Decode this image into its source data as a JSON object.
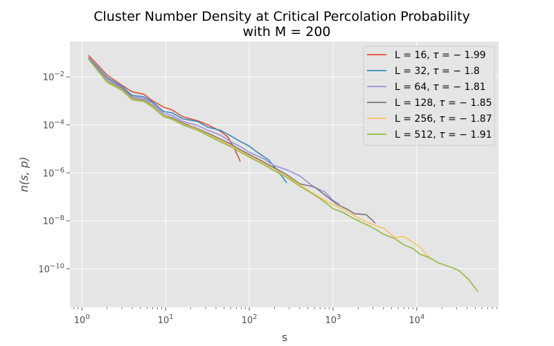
{
  "chart_data": {
    "type": "line",
    "title": "Cluster Number Density at Critical Percolation Probability",
    "subtitle": "with M = 200",
    "xlabel": "s",
    "ylabel": "n(s, p)",
    "xscale": "log",
    "yscale": "log",
    "xlim": [
      0.72,
      95000
    ],
    "ylim": [
      2.5e-12,
      0.3
    ],
    "grid": true,
    "legend_position": "top-right",
    "x_ticks": [
      {
        "base": "10",
        "exp": "0"
      },
      {
        "base": "10",
        "exp": "1"
      },
      {
        "base": "10",
        "exp": "2"
      },
      {
        "base": "10",
        "exp": "3"
      },
      {
        "base": "10",
        "exp": "4"
      }
    ],
    "y_ticks": [
      {
        "base": "10",
        "exp": "−2",
        "value": 0.01
      },
      {
        "base": "10",
        "exp": "−4",
        "value": 0.0001
      },
      {
        "base": "10",
        "exp": "−6",
        "value": 1e-06
      },
      {
        "base": "10",
        "exp": "−8",
        "value": 1e-08
      },
      {
        "base": "10",
        "exp": "−10",
        "value": 1e-10
      }
    ],
    "series": [
      {
        "name": "L = 16, τ = − 1.99",
        "label_parts": [
          "L = 16, ",
          "τ",
          " = − 1.99"
        ],
        "color": "#e24a33",
        "points": [
          [
            1.2,
            0.08
          ],
          [
            2,
            0.012
          ],
          [
            3,
            0.0045
          ],
          [
            4,
            0.0024
          ],
          [
            5.5,
            0.0019
          ],
          [
            7,
            0.001
          ],
          [
            9.5,
            0.00055
          ],
          [
            12,
            0.00042
          ],
          [
            16,
            0.00022
          ],
          [
            24,
            0.00015
          ],
          [
            32,
            0.0001
          ],
          [
            45,
            5.5e-05
          ],
          [
            55,
            3.2e-05
          ],
          [
            65,
            1.2e-05
          ],
          [
            78,
            3e-06
          ]
        ]
      },
      {
        "name": "L = 32, τ = − 1.8",
        "label_parts": [
          "L = 32, ",
          "τ",
          " = − 1.8"
        ],
        "color": "#348abd",
        "points": [
          [
            1.2,
            0.065
          ],
          [
            2,
            0.0095
          ],
          [
            3,
            0.004
          ],
          [
            4,
            0.0017
          ],
          [
            5.5,
            0.0015
          ],
          [
            7,
            0.0009
          ],
          [
            9.5,
            0.00036
          ],
          [
            12,
            0.00032
          ],
          [
            16,
            0.00018
          ],
          [
            24,
            0.00014
          ],
          [
            32,
            8e-05
          ],
          [
            45,
            6e-05
          ],
          [
            60,
            3.5e-05
          ],
          [
            75,
            2.2e-05
          ],
          [
            100,
            1.3e-05
          ],
          [
            130,
            6.5e-06
          ],
          [
            170,
            3.5e-06
          ],
          [
            220,
            1.2e-06
          ],
          [
            280,
            3.8e-07
          ]
        ]
      },
      {
        "name": "L = 64, τ = − 1.81",
        "label_parts": [
          "L = 64, ",
          "τ",
          " = − 1.81"
        ],
        "color": "#988ed5",
        "points": [
          [
            1.2,
            0.06
          ],
          [
            2,
            0.0085
          ],
          [
            3,
            0.0035
          ],
          [
            4,
            0.0015
          ],
          [
            5.5,
            0.0013
          ],
          [
            7,
            0.0008
          ],
          [
            9.5,
            0.0003
          ],
          [
            12,
            0.00025
          ],
          [
            16,
            0.00014
          ],
          [
            24,
            9.5e-05
          ],
          [
            32,
            6e-05
          ],
          [
            45,
            3.8e-05
          ],
          [
            60,
            2e-05
          ],
          [
            75,
            1.35e-05
          ],
          [
            100,
            7.2e-06
          ],
          [
            150,
            3.8e-06
          ],
          [
            200,
            2e-06
          ],
          [
            280,
            1.35e-06
          ],
          [
            400,
            7.5e-07
          ],
          [
            600,
            2.5e-07
          ],
          [
            800,
            1.6e-07
          ],
          [
            1000,
            7e-08
          ],
          [
            1200,
            5e-08
          ]
        ]
      },
      {
        "name": "L = 128, τ = − 1.85",
        "label_parts": [
          "L = 128, ",
          "τ",
          " = − 1.85"
        ],
        "color": "#777777",
        "points": [
          [
            1.2,
            0.058
          ],
          [
            2,
            0.007
          ],
          [
            3,
            0.0032
          ],
          [
            4,
            0.0013
          ],
          [
            5.5,
            0.0011
          ],
          [
            7,
            0.00065
          ],
          [
            9.5,
            0.00025
          ],
          [
            12,
            0.0002
          ],
          [
            16,
            0.00012
          ],
          [
            24,
            7e-05
          ],
          [
            32,
            4.5e-05
          ],
          [
            45,
            2.6e-05
          ],
          [
            60,
            1.6e-05
          ],
          [
            75,
            1e-05
          ],
          [
            100,
            5.8e-06
          ],
          [
            150,
            2.8e-06
          ],
          [
            200,
            1.6e-06
          ],
          [
            280,
            8.5e-07
          ],
          [
            400,
            3.5e-07
          ],
          [
            600,
            2.6e-07
          ],
          [
            800,
            1.2e-07
          ],
          [
            1100,
            5e-08
          ],
          [
            1500,
            3e-08
          ],
          [
            1800,
            2e-08
          ],
          [
            2500,
            1.8e-08
          ],
          [
            3200,
            8e-09
          ]
        ]
      },
      {
        "name": "L = 256, τ = − 1.87",
        "label_parts": [
          "L = 256, ",
          "τ",
          " = − 1.87"
        ],
        "color": "#fbc15e",
        "points": [
          [
            1.2,
            0.056
          ],
          [
            2,
            0.0065
          ],
          [
            3,
            0.003
          ],
          [
            4,
            0.0012
          ],
          [
            5.5,
            0.001
          ],
          [
            7,
            0.0006
          ],
          [
            9.5,
            0.00024
          ],
          [
            12,
            0.00018
          ],
          [
            16,
            0.00011
          ],
          [
            24,
            6.5e-05
          ],
          [
            32,
            4e-05
          ],
          [
            45,
            2.3e-05
          ],
          [
            60,
            1.4e-05
          ],
          [
            75,
            9e-06
          ],
          [
            100,
            5e-06
          ],
          [
            150,
            2.5e-06
          ],
          [
            200,
            1.4e-06
          ],
          [
            280,
            7.5e-07
          ],
          [
            400,
            3.2e-07
          ],
          [
            600,
            1.3e-07
          ],
          [
            800,
            7e-08
          ],
          [
            1100,
            4e-08
          ],
          [
            1500,
            2.5e-08
          ],
          [
            2000,
            1.3e-08
          ],
          [
            3000,
            7e-09
          ],
          [
            4000,
            5e-09
          ],
          [
            5500,
            2e-09
          ],
          [
            7000,
            2.2e-09
          ],
          [
            9000,
            1.3e-09
          ],
          [
            11000,
            8e-10
          ],
          [
            13000,
            4e-10
          ],
          [
            14500,
            2.5e-10
          ]
        ]
      },
      {
        "name": "L = 512, τ = − 1.91",
        "label_parts": [
          "L = 512, ",
          "τ",
          " = − 1.91"
        ],
        "color": "#8eba42",
        "points": [
          [
            1.2,
            0.055
          ],
          [
            2,
            0.006
          ],
          [
            3,
            0.0028
          ],
          [
            4,
            0.0011
          ],
          [
            5.5,
            0.00095
          ],
          [
            7,
            0.00055
          ],
          [
            9.5,
            0.00022
          ],
          [
            12,
            0.00017
          ],
          [
            16,
            0.0001
          ],
          [
            24,
            6e-05
          ],
          [
            32,
            3.6e-05
          ],
          [
            45,
            2e-05
          ],
          [
            60,
            1.25e-05
          ],
          [
            75,
            8e-06
          ],
          [
            100,
            4.5e-06
          ],
          [
            150,
            2.2e-06
          ],
          [
            200,
            1.2e-06
          ],
          [
            280,
            6.5e-07
          ],
          [
            400,
            2.8e-07
          ],
          [
            600,
            1.2e-07
          ],
          [
            800,
            6e-08
          ],
          [
            1000,
            3.2e-08
          ],
          [
            1300,
            2.3e-08
          ],
          [
            1800,
            1.2e-08
          ],
          [
            2500,
            7e-09
          ],
          [
            3200,
            4.5e-09
          ],
          [
            4000,
            2.8e-09
          ],
          [
            5500,
            1.8e-09
          ],
          [
            7000,
            1e-09
          ],
          [
            9000,
            7e-10
          ],
          [
            11000,
            4e-10
          ],
          [
            14000,
            3e-10
          ],
          [
            18000,
            1.8e-10
          ],
          [
            25000,
            1.2e-10
          ],
          [
            32000,
            8.5e-11
          ],
          [
            42000,
            3.5e-11
          ],
          [
            54000,
            1.1e-11
          ]
        ]
      }
    ]
  }
}
